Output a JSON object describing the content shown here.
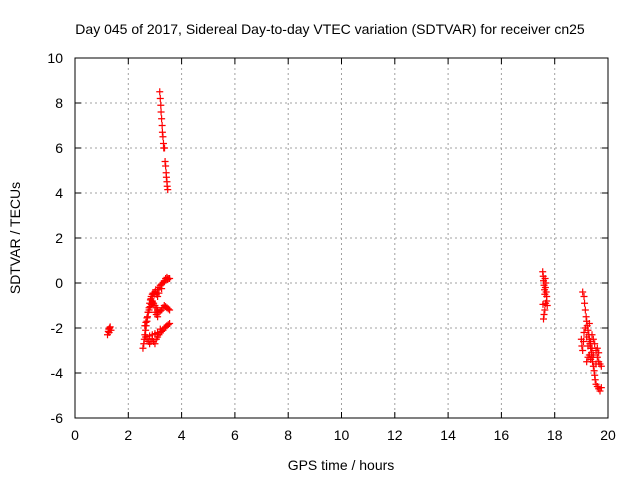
{
  "chart_data": {
    "type": "scatter",
    "title": "Day 045 of 2017, Sidereal Day-to-day VTEC variation (SDTVAR) for receiver cn25",
    "xlabel": "GPS time / hours",
    "ylabel": "SDTVAR / TECUs",
    "xlim": [
      0,
      20
    ],
    "ylim": [
      -6,
      10
    ],
    "xticks": [
      0,
      2,
      4,
      6,
      8,
      10,
      12,
      14,
      16,
      18,
      20
    ],
    "yticks": [
      -6,
      -4,
      -2,
      0,
      2,
      4,
      6,
      8,
      10
    ],
    "grid": true,
    "marker": "plus",
    "series_color": "#ff0000",
    "series": [
      {
        "name": "SDTVAR",
        "points": [
          [
            1.22,
            -2.3
          ],
          [
            1.25,
            -2.15
          ],
          [
            1.27,
            -2.05
          ],
          [
            1.3,
            -2.0
          ],
          [
            1.32,
            -1.95
          ],
          [
            1.35,
            -2.1
          ],
          [
            1.28,
            -2.2
          ],
          [
            3.18,
            8.5
          ],
          [
            3.2,
            8.2
          ],
          [
            3.22,
            7.9
          ],
          [
            3.23,
            7.6
          ],
          [
            3.25,
            7.3
          ],
          [
            3.27,
            7.0
          ],
          [
            3.28,
            6.7
          ],
          [
            3.3,
            6.5
          ],
          [
            3.32,
            6.2
          ],
          [
            3.33,
            6.0
          ],
          [
            3.36,
            6.0
          ],
          [
            3.38,
            5.4
          ],
          [
            3.4,
            5.2
          ],
          [
            3.42,
            4.9
          ],
          [
            3.43,
            4.7
          ],
          [
            3.45,
            4.5
          ],
          [
            3.46,
            4.3
          ],
          [
            3.48,
            4.15
          ],
          [
            2.55,
            -2.9
          ],
          [
            2.58,
            -2.7
          ],
          [
            2.6,
            -2.5
          ],
          [
            2.62,
            -2.3
          ],
          [
            2.65,
            -2.1
          ],
          [
            2.67,
            -1.9
          ],
          [
            2.7,
            -1.7
          ],
          [
            2.72,
            -1.5
          ],
          [
            2.75,
            -1.3
          ],
          [
            2.78,
            -1.1
          ],
          [
            2.8,
            -0.9
          ],
          [
            2.83,
            -0.75
          ],
          [
            2.86,
            -0.6
          ],
          [
            2.9,
            -0.5
          ],
          [
            2.93,
            -0.45
          ],
          [
            2.97,
            -0.5
          ],
          [
            3.0,
            -0.4
          ],
          [
            3.03,
            -0.3
          ],
          [
            2.62,
            -1.9
          ],
          [
            2.66,
            -1.75
          ],
          [
            2.7,
            -1.55
          ],
          [
            2.74,
            -1.3
          ],
          [
            2.78,
            -1.2
          ],
          [
            2.82,
            -1.05
          ],
          [
            2.86,
            -0.95
          ],
          [
            2.9,
            -0.85
          ],
          [
            3.05,
            -0.5
          ],
          [
            3.1,
            -0.3
          ],
          [
            3.15,
            -0.2
          ],
          [
            3.2,
            -0.1
          ],
          [
            3.25,
            -0.05
          ],
          [
            3.3,
            0.0
          ],
          [
            3.35,
            0.1
          ],
          [
            3.4,
            0.2
          ],
          [
            3.45,
            0.25
          ],
          [
            3.5,
            0.2
          ],
          [
            3.55,
            0.2
          ],
          [
            3.1,
            -0.6
          ],
          [
            3.15,
            -0.45
          ],
          [
            3.25,
            -0.25
          ],
          [
            3.35,
            0.05
          ],
          [
            3.48,
            0.15
          ],
          [
            2.85,
            -0.7
          ],
          [
            2.9,
            -0.8
          ],
          [
            2.95,
            -0.9
          ],
          [
            3.0,
            -1.0
          ],
          [
            3.05,
            -1.1
          ],
          [
            3.1,
            -1.2
          ],
          [
            3.15,
            -1.3
          ],
          [
            3.2,
            -1.25
          ],
          [
            3.25,
            -1.2
          ],
          [
            3.3,
            -1.1
          ],
          [
            3.35,
            -1.0
          ],
          [
            3.4,
            -1.05
          ],
          [
            3.45,
            -1.1
          ],
          [
            3.5,
            -1.15
          ],
          [
            3.55,
            -1.2
          ],
          [
            3.0,
            -1.3
          ],
          [
            3.05,
            -1.4
          ],
          [
            3.1,
            -1.5
          ],
          [
            2.65,
            -2.4
          ],
          [
            2.7,
            -2.5
          ],
          [
            2.75,
            -2.6
          ],
          [
            2.8,
            -2.7
          ],
          [
            2.85,
            -2.6
          ],
          [
            2.9,
            -2.5
          ],
          [
            2.95,
            -2.6
          ],
          [
            3.0,
            -2.7
          ],
          [
            3.05,
            -2.5
          ],
          [
            3.1,
            -2.4
          ],
          [
            3.15,
            -2.3
          ],
          [
            3.2,
            -2.2
          ],
          [
            3.25,
            -2.15
          ],
          [
            3.3,
            -2.1
          ],
          [
            3.35,
            -2.0
          ],
          [
            3.4,
            -1.95
          ],
          [
            3.45,
            -1.9
          ],
          [
            3.5,
            -1.85
          ],
          [
            3.55,
            -1.8
          ],
          [
            2.8,
            -2.35
          ],
          [
            2.9,
            -2.3
          ],
          [
            3.0,
            -2.25
          ],
          [
            3.1,
            -2.2
          ],
          [
            3.2,
            -2.05
          ],
          [
            17.55,
            0.5
          ],
          [
            17.57,
            0.3
          ],
          [
            17.58,
            0.1
          ],
          [
            17.6,
            -0.1
          ],
          [
            17.62,
            -0.3
          ],
          [
            17.63,
            -0.5
          ],
          [
            17.65,
            -0.2
          ],
          [
            17.67,
            0.0
          ],
          [
            17.68,
            -0.4
          ],
          [
            17.7,
            -0.8
          ],
          [
            17.72,
            -1.0
          ],
          [
            17.63,
            -1.2
          ],
          [
            17.6,
            -1.4
          ],
          [
            17.58,
            -1.6
          ],
          [
            17.66,
            -0.9
          ],
          [
            17.7,
            -0.6
          ],
          [
            17.56,
            -0.95
          ],
          [
            17.64,
            0.2
          ],
          [
            19.05,
            -0.4
          ],
          [
            19.1,
            -0.6
          ],
          [
            19.12,
            -0.9
          ],
          [
            19.15,
            -1.2
          ],
          [
            19.18,
            -1.5
          ],
          [
            19.2,
            -1.7
          ],
          [
            19.22,
            -1.9
          ],
          [
            19.25,
            -2.1
          ],
          [
            19.28,
            -2.3
          ],
          [
            19.3,
            -2.5
          ],
          [
            19.32,
            -2.7
          ],
          [
            19.35,
            -2.9
          ],
          [
            19.38,
            -3.1
          ],
          [
            19.4,
            -3.3
          ],
          [
            19.42,
            -3.5
          ],
          [
            19.45,
            -3.7
          ],
          [
            19.48,
            -3.9
          ],
          [
            19.5,
            -4.1
          ],
          [
            19.52,
            -4.3
          ],
          [
            19.55,
            -4.5
          ],
          [
            19.6,
            -4.6
          ],
          [
            19.65,
            -4.7
          ],
          [
            19.7,
            -4.8
          ],
          [
            19.75,
            -4.65
          ],
          [
            19.0,
            -2.5
          ],
          [
            19.02,
            -2.8
          ],
          [
            19.05,
            -3.0
          ],
          [
            19.08,
            -2.6
          ],
          [
            19.1,
            -2.2
          ],
          [
            19.15,
            -2.0
          ],
          [
            19.2,
            -2.4
          ],
          [
            19.25,
            -2.8
          ],
          [
            19.3,
            -3.2
          ],
          [
            19.35,
            -3.4
          ],
          [
            19.4,
            -2.9
          ],
          [
            19.45,
            -2.5
          ],
          [
            19.5,
            -2.7
          ],
          [
            19.55,
            -3.0
          ],
          [
            19.6,
            -3.3
          ],
          [
            19.65,
            -3.5
          ],
          [
            19.7,
            -3.6
          ],
          [
            19.75,
            -3.7
          ],
          [
            19.2,
            -3.5
          ],
          [
            19.25,
            -3.3
          ],
          [
            19.35,
            -2.6
          ],
          [
            19.45,
            -3.2
          ],
          [
            19.55,
            -3.6
          ],
          [
            19.6,
            -2.9
          ],
          [
            19.65,
            -3.1
          ],
          [
            19.3,
            -1.8
          ],
          [
            19.4,
            -2.3
          ]
        ]
      }
    ]
  }
}
